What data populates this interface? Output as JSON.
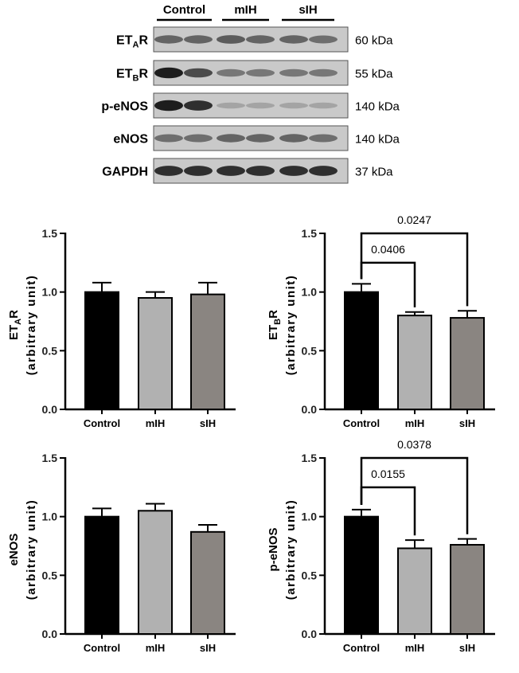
{
  "blot": {
    "groups": [
      {
        "label": "Control"
      },
      {
        "label": "mIH"
      },
      {
        "label": "sIH"
      }
    ],
    "rows": [
      {
        "name_main": "ET",
        "name_sub": "A",
        "name_tail": "R",
        "size": "60 kDa",
        "bands": [
          0.55,
          0.55,
          0.6,
          0.55,
          0.55,
          0.5
        ]
      },
      {
        "name_main": "ET",
        "name_sub": "B",
        "name_tail": "R",
        "size": "55 kDa",
        "bands": [
          0.95,
          0.7,
          0.45,
          0.45,
          0.45,
          0.45
        ]
      },
      {
        "name_main": "p-eNOS",
        "name_sub": "",
        "name_tail": "",
        "size": "140 kDa",
        "bands": [
          0.95,
          0.85,
          0.2,
          0.2,
          0.2,
          0.2
        ]
      },
      {
        "name_main": "eNOS",
        "name_sub": "",
        "name_tail": "",
        "size": "140 kDa",
        "bands": [
          0.5,
          0.5,
          0.55,
          0.55,
          0.55,
          0.5
        ]
      },
      {
        "name_main": "GAPDH",
        "name_sub": "",
        "name_tail": "",
        "size": "37 kDa",
        "bands": [
          0.85,
          0.85,
          0.85,
          0.85,
          0.85,
          0.85
        ]
      }
    ]
  },
  "chart_data": [
    {
      "type": "bar",
      "categories": [
        "Control",
        "mIH",
        "sIH"
      ],
      "values": [
        1.0,
        0.95,
        0.98
      ],
      "errors": [
        0.08,
        0.05,
        0.1
      ],
      "colors": [
        "#000000",
        "#b1b1b1",
        "#8a8581"
      ],
      "ylabel_main": "ET",
      "ylabel_sub": "A",
      "ylabel_tail": "R",
      "ylabel_line2": "(arbitrary unit)",
      "ylim": [
        0.0,
        1.5
      ],
      "yticks": [
        "0.0",
        "0.5",
        "1.0",
        "1.5"
      ],
      "brackets": []
    },
    {
      "type": "bar",
      "categories": [
        "Control",
        "mIH",
        "sIH"
      ],
      "values": [
        1.0,
        0.8,
        0.78
      ],
      "errors": [
        0.07,
        0.03,
        0.06
      ],
      "colors": [
        "#000000",
        "#b1b1b1",
        "#8a8581"
      ],
      "ylabel_main": "ET",
      "ylabel_sub": "B",
      "ylabel_tail": "R",
      "ylabel_line2": "(arbitrary unit)",
      "ylim": [
        0.0,
        1.5
      ],
      "yticks": [
        "0.0",
        "0.5",
        "1.0",
        "1.5"
      ],
      "brackets": [
        {
          "from": 0,
          "to": 1,
          "p": "0.0406",
          "y": 1.25
        },
        {
          "from": 0,
          "to": 2,
          "p": "0.0247",
          "y": 1.5
        }
      ]
    },
    {
      "type": "bar",
      "categories": [
        "Control",
        "mIH",
        "sIH"
      ],
      "values": [
        1.0,
        1.05,
        0.87
      ],
      "errors": [
        0.07,
        0.06,
        0.06
      ],
      "colors": [
        "#000000",
        "#b1b1b1",
        "#8a8581"
      ],
      "ylabel_main": "eNOS",
      "ylabel_sub": "",
      "ylabel_tail": "",
      "ylabel_line2": "(arbitrary unit)",
      "ylim": [
        0.0,
        1.5
      ],
      "yticks": [
        "0.0",
        "0.5",
        "1.0",
        "1.5"
      ],
      "brackets": []
    },
    {
      "type": "bar",
      "categories": [
        "Control",
        "mIH",
        "sIH"
      ],
      "values": [
        1.0,
        0.73,
        0.76
      ],
      "errors": [
        0.06,
        0.07,
        0.05
      ],
      "colors": [
        "#000000",
        "#b1b1b1",
        "#8a8581"
      ],
      "ylabel_main": "p-eNOS",
      "ylabel_sub": "",
      "ylabel_tail": "",
      "ylabel_line2": "(arbitrary unit)",
      "ylim": [
        0.0,
        1.5
      ],
      "yticks": [
        "0.0",
        "0.5",
        "1.0",
        "1.5"
      ],
      "brackets": [
        {
          "from": 0,
          "to": 1,
          "p": "0.0155",
          "y": 1.25
        },
        {
          "from": 0,
          "to": 2,
          "p": "0.0378",
          "y": 1.5
        }
      ]
    }
  ]
}
